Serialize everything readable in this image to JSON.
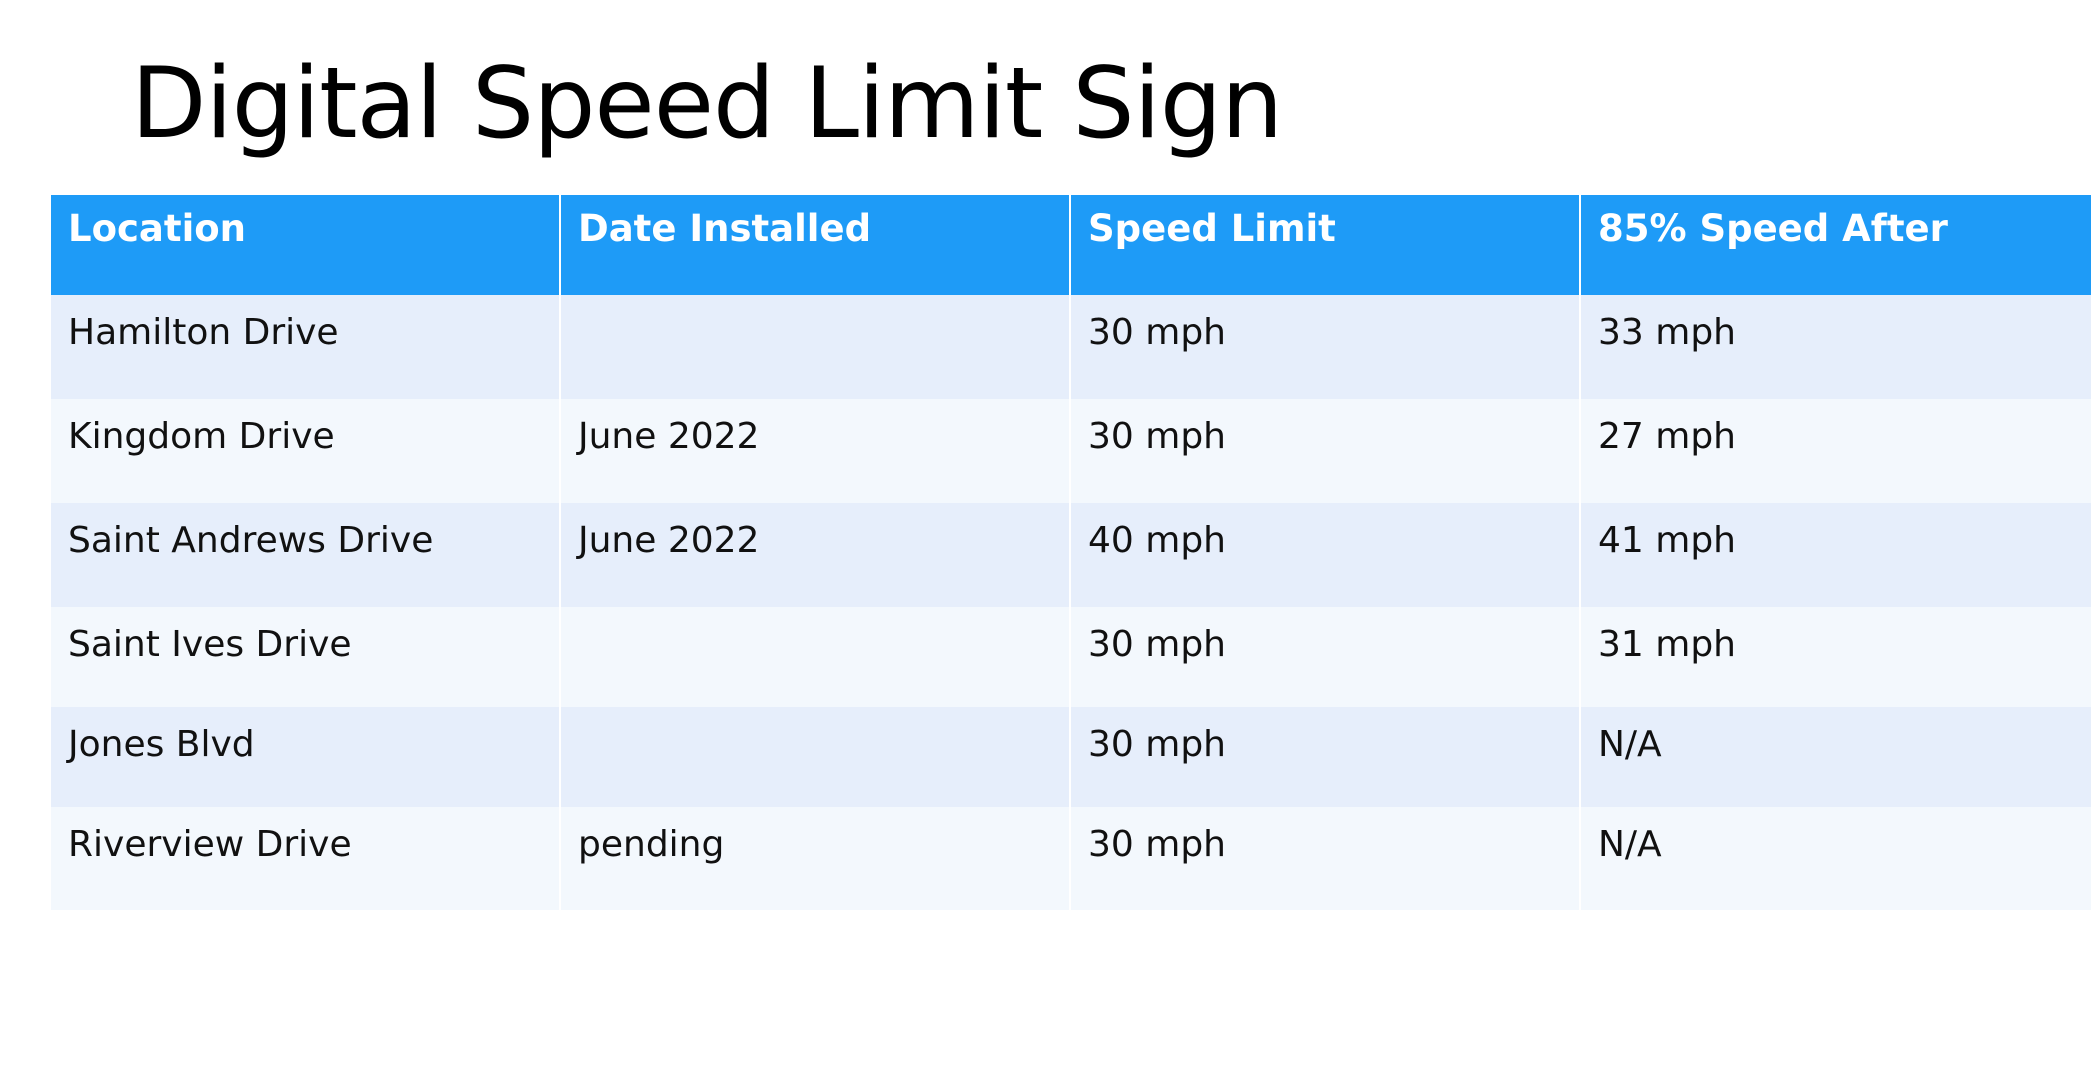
{
  "title": "Digital Speed Limit Sign",
  "table": {
    "headers": [
      "Location",
      "Date Installed",
      "Speed Limit",
      "85% Speed After"
    ],
    "rows": [
      [
        "Hamilton Drive",
        "",
        "30 mph",
        "33 mph"
      ],
      [
        "Kingdom Drive",
        "June 2022",
        "30 mph",
        "27 mph"
      ],
      [
        "Saint Andrews Drive",
        "June 2022",
        "40 mph",
        "41 mph"
      ],
      [
        "Saint Ives Drive",
        "",
        "30 mph",
        "31 mph"
      ],
      [
        "Jones Blvd",
        "",
        "30 mph",
        "N/A"
      ],
      [
        "Riverview Drive",
        "pending",
        "30 mph",
        "N/A"
      ]
    ]
  },
  "colors": {
    "header_background": "#1e9bf7",
    "header_text": "#ffffff",
    "row_band_odd": "#e6eefb",
    "row_band_even": "#f3f8fd"
  }
}
